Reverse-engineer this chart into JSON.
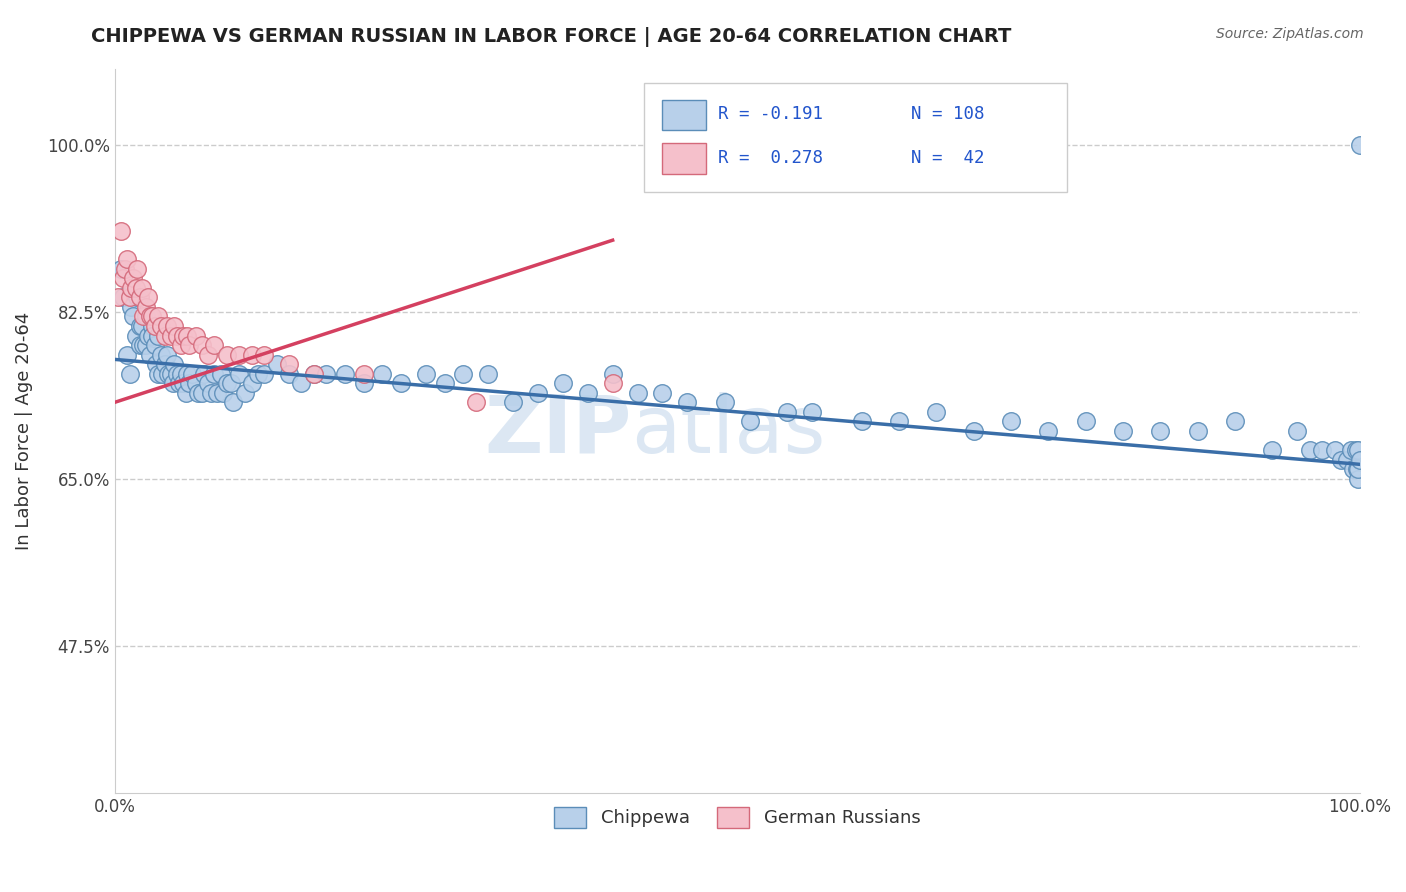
{
  "title": "CHIPPEWA VS GERMAN RUSSIAN IN LABOR FORCE | AGE 20-64 CORRELATION CHART",
  "source": "Source: ZipAtlas.com",
  "ylabel": "In Labor Force | Age 20-64",
  "xlim": [
    0.0,
    1.0
  ],
  "ylim": [
    0.32,
    1.08
  ],
  "ytick_values": [
    0.475,
    0.65,
    0.825,
    1.0
  ],
  "chippewa_color": "#b8d0ea",
  "chippewa_edge": "#5b8db8",
  "german_color": "#f5c0cb",
  "german_edge": "#d4697a",
  "chippewa_line_color": "#3a6ea8",
  "german_line_color": "#d44060",
  "watermark_zip": "ZIP",
  "watermark_atlas": "atlas",
  "grid_color": "#cccccc",
  "background_color": "#ffffff",
  "legend_R1": "R = -0.191",
  "legend_N1": "N = 108",
  "legend_R2": "R =  0.278",
  "legend_N2": "N =  42",
  "legend_color": "#2255cc",
  "chippewa_x": [
    0.005,
    0.007,
    0.01,
    0.012,
    0.013,
    0.015,
    0.017,
    0.018,
    0.02,
    0.02,
    0.022,
    0.023,
    0.025,
    0.025,
    0.027,
    0.028,
    0.03,
    0.03,
    0.032,
    0.033,
    0.035,
    0.035,
    0.037,
    0.038,
    0.04,
    0.042,
    0.043,
    0.045,
    0.047,
    0.048,
    0.05,
    0.052,
    0.053,
    0.055,
    0.057,
    0.058,
    0.06,
    0.062,
    0.065,
    0.067,
    0.07,
    0.072,
    0.075,
    0.077,
    0.08,
    0.082,
    0.085,
    0.087,
    0.09,
    0.093,
    0.095,
    0.1,
    0.105,
    0.11,
    0.115,
    0.12,
    0.13,
    0.14,
    0.15,
    0.16,
    0.17,
    0.185,
    0.2,
    0.215,
    0.23,
    0.25,
    0.265,
    0.28,
    0.3,
    0.32,
    0.34,
    0.36,
    0.38,
    0.4,
    0.42,
    0.44,
    0.46,
    0.49,
    0.51,
    0.54,
    0.56,
    0.6,
    0.63,
    0.66,
    0.69,
    0.72,
    0.75,
    0.78,
    0.81,
    0.84,
    0.87,
    0.9,
    0.93,
    0.95,
    0.96,
    0.97,
    0.98,
    0.985,
    0.99,
    0.993,
    0.995,
    0.997,
    0.998,
    0.999,
    0.999,
    0.999,
    1.0,
    1.0
  ],
  "chippewa_y": [
    0.87,
    0.84,
    0.78,
    0.76,
    0.83,
    0.82,
    0.8,
    0.84,
    0.79,
    0.81,
    0.81,
    0.79,
    0.82,
    0.79,
    0.8,
    0.78,
    0.81,
    0.8,
    0.79,
    0.77,
    0.8,
    0.76,
    0.78,
    0.76,
    0.77,
    0.78,
    0.76,
    0.76,
    0.75,
    0.77,
    0.76,
    0.75,
    0.76,
    0.75,
    0.74,
    0.76,
    0.75,
    0.76,
    0.75,
    0.74,
    0.74,
    0.76,
    0.75,
    0.74,
    0.76,
    0.74,
    0.76,
    0.74,
    0.75,
    0.75,
    0.73,
    0.76,
    0.74,
    0.75,
    0.76,
    0.76,
    0.77,
    0.76,
    0.75,
    0.76,
    0.76,
    0.76,
    0.75,
    0.76,
    0.75,
    0.76,
    0.75,
    0.76,
    0.76,
    0.73,
    0.74,
    0.75,
    0.74,
    0.76,
    0.74,
    0.74,
    0.73,
    0.73,
    0.71,
    0.72,
    0.72,
    0.71,
    0.71,
    0.72,
    0.7,
    0.71,
    0.7,
    0.71,
    0.7,
    0.7,
    0.7,
    0.71,
    0.68,
    0.7,
    0.68,
    0.68,
    0.68,
    0.67,
    0.67,
    0.68,
    0.66,
    0.68,
    0.66,
    0.68,
    0.65,
    0.66,
    1.0,
    0.67
  ],
  "german_x": [
    0.003,
    0.005,
    0.007,
    0.008,
    0.01,
    0.012,
    0.013,
    0.015,
    0.017,
    0.018,
    0.02,
    0.022,
    0.023,
    0.025,
    0.027,
    0.028,
    0.03,
    0.032,
    0.035,
    0.037,
    0.04,
    0.042,
    0.045,
    0.048,
    0.05,
    0.053,
    0.055,
    0.058,
    0.06,
    0.065,
    0.07,
    0.075,
    0.08,
    0.09,
    0.1,
    0.11,
    0.12,
    0.14,
    0.16,
    0.2,
    0.29,
    0.4
  ],
  "german_y": [
    0.84,
    0.91,
    0.86,
    0.87,
    0.88,
    0.84,
    0.85,
    0.86,
    0.85,
    0.87,
    0.84,
    0.85,
    0.82,
    0.83,
    0.84,
    0.82,
    0.82,
    0.81,
    0.82,
    0.81,
    0.8,
    0.81,
    0.8,
    0.81,
    0.8,
    0.79,
    0.8,
    0.8,
    0.79,
    0.8,
    0.79,
    0.78,
    0.79,
    0.78,
    0.78,
    0.78,
    0.78,
    0.77,
    0.76,
    0.76,
    0.73,
    0.75
  ]
}
